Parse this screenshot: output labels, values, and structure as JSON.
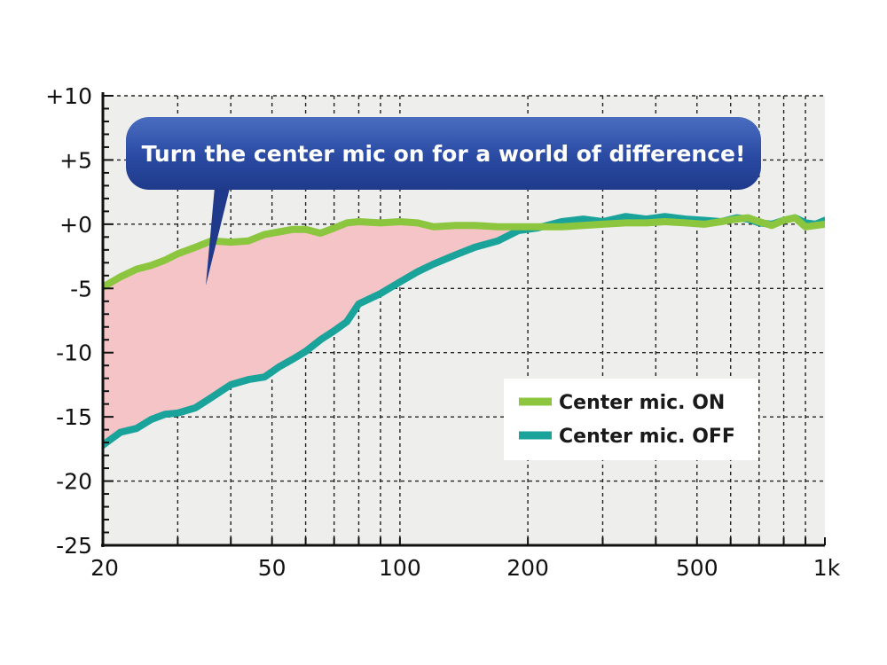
{
  "chart_data": {
    "type": "line",
    "xscale": "log",
    "xlim": [
      20,
      1000
    ],
    "ylim": [
      -25,
      10
    ],
    "grid": true,
    "legend_position": "lower-right",
    "xticks": [
      {
        "value": 20,
        "label": "20"
      },
      {
        "value": 50,
        "label": "50"
      },
      {
        "value": 100,
        "label": "100"
      },
      {
        "value": 200,
        "label": "200"
      },
      {
        "value": 500,
        "label": "500"
      },
      {
        "value": 1000,
        "label": "1k"
      }
    ],
    "yticks": [
      {
        "value": 10,
        "label": "+10"
      },
      {
        "value": 5,
        "label": "+5"
      },
      {
        "value": 0,
        "label": "+0"
      },
      {
        "value": -5,
        "label": "-5"
      },
      {
        "value": -10,
        "label": "-10"
      },
      {
        "value": -15,
        "label": "-15"
      },
      {
        "value": -20,
        "label": "-20"
      },
      {
        "value": -25,
        "label": "-25"
      }
    ],
    "annotation": "Turn the center mic on for a world of difference!",
    "fill_between": {
      "color": "#f5c4c6",
      "between": [
        "Center mic. ON",
        "Center mic. OFF"
      ]
    },
    "series": [
      {
        "name": "Center mic. ON",
        "color": "#8cc63f",
        "x": [
          20,
          22,
          24,
          26,
          28,
          30,
          33,
          36,
          40,
          44,
          48,
          52,
          56,
          60,
          65,
          70,
          75,
          80,
          90,
          100,
          110,
          120,
          135,
          150,
          170,
          190,
          210,
          240,
          270,
          300,
          340,
          380,
          420,
          470,
          520,
          570,
          620,
          660,
          700,
          750,
          800,
          850,
          900,
          950,
          1000
        ],
        "y": [
          -4.9,
          -4.1,
          -3.5,
          -3.2,
          -2.8,
          -2.3,
          -1.8,
          -1.3,
          -1.4,
          -1.3,
          -0.8,
          -0.6,
          -0.4,
          -0.4,
          -0.7,
          -0.3,
          0.1,
          0.2,
          0.1,
          0.2,
          0.1,
          -0.2,
          -0.1,
          -0.1,
          -0.2,
          -0.2,
          -0.2,
          -0.2,
          -0.1,
          0.0,
          0.1,
          0.1,
          0.2,
          0.1,
          0.0,
          0.2,
          0.4,
          0.5,
          0.2,
          -0.1,
          0.3,
          0.5,
          -0.2,
          -0.1,
          0.0
        ]
      },
      {
        "name": "Center mic. OFF",
        "color": "#1aa39a",
        "x": [
          20,
          22,
          24,
          26,
          28,
          30,
          33,
          36,
          40,
          44,
          48,
          52,
          56,
          60,
          65,
          70,
          75,
          80,
          90,
          100,
          110,
          120,
          135,
          150,
          170,
          190,
          210,
          240,
          270,
          300,
          340,
          380,
          420,
          470,
          520,
          570,
          620,
          660,
          700,
          750,
          800,
          850,
          900,
          950,
          1000
        ],
        "y": [
          -17.2,
          -16.2,
          -15.9,
          -15.2,
          -14.8,
          -14.7,
          -14.3,
          -13.5,
          -12.5,
          -12.1,
          -11.9,
          -11.1,
          -10.5,
          -9.9,
          -9.0,
          -8.3,
          -7.6,
          -6.2,
          -5.4,
          -4.5,
          -3.7,
          -3.1,
          -2.4,
          -1.8,
          -1.3,
          -0.5,
          -0.3,
          0.2,
          0.4,
          0.2,
          0.6,
          0.4,
          0.6,
          0.4,
          0.3,
          0.2,
          0.5,
          0.4,
          0.1,
          0.0,
          0.3,
          0.5,
          0.1,
          0.0,
          0.3
        ]
      }
    ]
  }
}
